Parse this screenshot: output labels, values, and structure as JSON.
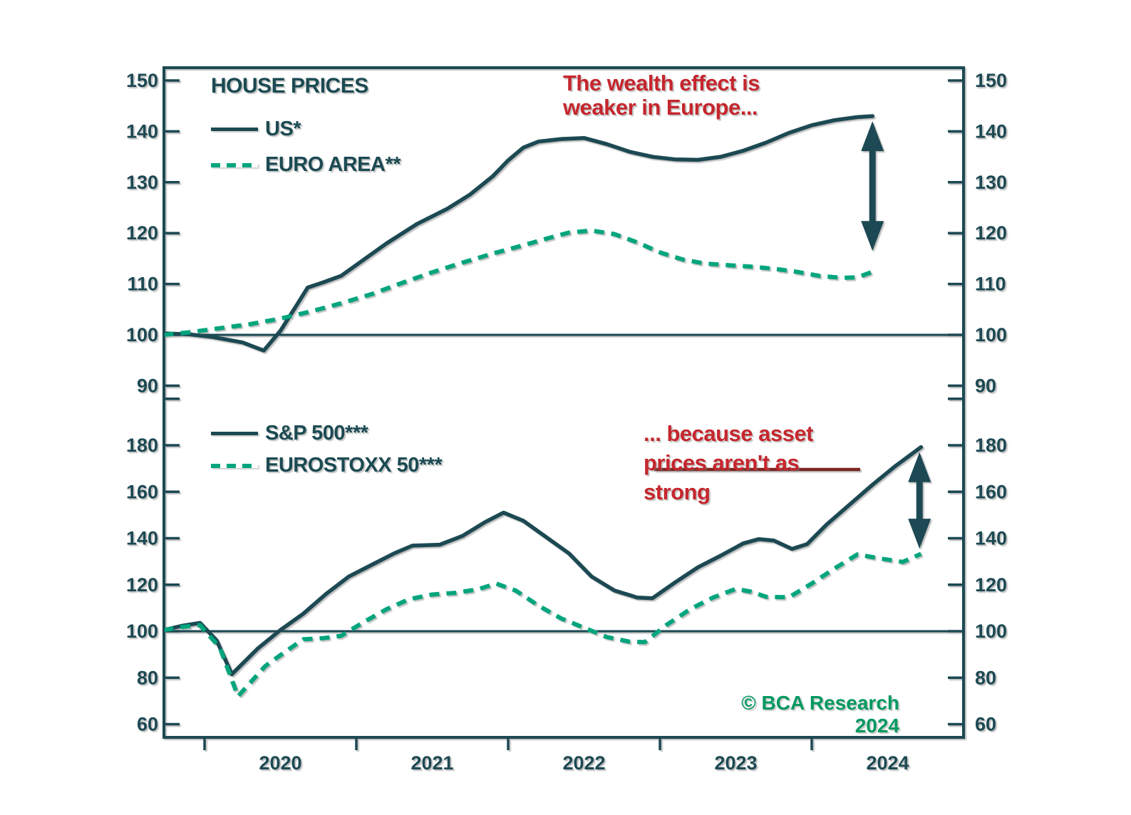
{
  "chart_data": {
    "type": "line",
    "x_axis": {
      "year_labels": [
        "2020",
        "2021",
        "2022",
        "2023",
        "2024"
      ],
      "year_values": [
        2020,
        2021,
        2022,
        2023,
        2024
      ],
      "range": [
        2019.73,
        2025.0
      ]
    },
    "copyright": "© BCA Research 2024",
    "colors": {
      "axis": "#1b4a52",
      "solid_series": "#1b4a52",
      "dashed_series": "#00a57d",
      "annotation_red": "#c5262d",
      "leader_maroon": "#7c2824",
      "copyright_green": "#00995f"
    },
    "panels": [
      {
        "name": "house-prices",
        "legend_title": "HOUSE PRICES",
        "yticks": [
          150,
          140,
          130,
          120,
          110,
          100,
          90
        ],
        "reference_value": 100,
        "annotation": {
          "lines": [
            "The wealth effect is",
            "weaker in Europe..."
          ]
        },
        "arrow": {
          "x": 2024.4,
          "from": 142.0,
          "to": 116.5
        },
        "series": [
          {
            "label": "US*",
            "line": "solid",
            "points": [
              [
                2019.73,
                100.3
              ],
              [
                2019.9,
                100.1
              ],
              [
                2020.05,
                99.6
              ],
              [
                2020.25,
                98.5
              ],
              [
                2020.39,
                96.9
              ],
              [
                2020.5,
                100.8
              ],
              [
                2020.6,
                105.5
              ],
              [
                2020.68,
                109.3
              ],
              [
                2020.78,
                110.3
              ],
              [
                2020.9,
                111.6
              ],
              [
                2021.05,
                114.8
              ],
              [
                2021.2,
                118.0
              ],
              [
                2021.4,
                121.8
              ],
              [
                2021.6,
                124.8
              ],
              [
                2021.75,
                127.6
              ],
              [
                2021.9,
                131.2
              ],
              [
                2022.0,
                134.3
              ],
              [
                2022.1,
                136.8
              ],
              [
                2022.2,
                138.0
              ],
              [
                2022.35,
                138.5
              ],
              [
                2022.5,
                138.7
              ],
              [
                2022.65,
                137.5
              ],
              [
                2022.8,
                136.0
              ],
              [
                2022.95,
                135.0
              ],
              [
                2023.1,
                134.5
              ],
              [
                2023.25,
                134.4
              ],
              [
                2023.4,
                135.0
              ],
              [
                2023.55,
                136.2
              ],
              [
                2023.7,
                137.8
              ],
              [
                2023.85,
                139.7
              ],
              [
                2024.0,
                141.2
              ],
              [
                2024.15,
                142.2
              ],
              [
                2024.3,
                142.8
              ],
              [
                2024.4,
                143.0
              ]
            ]
          },
          {
            "label": "EURO AREA**",
            "line": "dashed",
            "points": [
              [
                2019.73,
                100.0
              ],
              [
                2019.9,
                100.5
              ],
              [
                2020.1,
                101.3
              ],
              [
                2020.3,
                102.1
              ],
              [
                2020.5,
                103.2
              ],
              [
                2020.7,
                104.6
              ],
              [
                2020.9,
                106.2
              ],
              [
                2021.1,
                108.0
              ],
              [
                2021.3,
                110.2
              ],
              [
                2021.5,
                112.3
              ],
              [
                2021.7,
                114.2
              ],
              [
                2021.9,
                116.0
              ],
              [
                2022.1,
                117.6
              ],
              [
                2022.25,
                118.9
              ],
              [
                2022.4,
                120.1
              ],
              [
                2022.55,
                120.5
              ],
              [
                2022.7,
                119.8
              ],
              [
                2022.85,
                118.2
              ],
              [
                2023.0,
                116.2
              ],
              [
                2023.15,
                114.8
              ],
              [
                2023.3,
                114.0
              ],
              [
                2023.45,
                113.7
              ],
              [
                2023.6,
                113.4
              ],
              [
                2023.75,
                113.0
              ],
              [
                2023.9,
                112.4
              ],
              [
                2024.05,
                111.6
              ],
              [
                2024.2,
                111.2
              ],
              [
                2024.3,
                111.3
              ],
              [
                2024.4,
                112.4
              ]
            ]
          }
        ]
      },
      {
        "name": "equity-indexes",
        "legend_title": "",
        "yticks": [
          180,
          160,
          140,
          120,
          100,
          80,
          60
        ],
        "extra_unlabeled_tick": 200,
        "reference_value": 100,
        "annotation": {
          "lines": [
            "... because asset",
            "prices aren't as",
            "strong"
          ]
        },
        "arrow": {
          "x": 2024.71,
          "from": 177.0,
          "to": 135.5
        },
        "series": [
          {
            "label": "S&P 500***",
            "line": "solid",
            "points": [
              [
                2019.73,
                100.5
              ],
              [
                2019.85,
                102.3
              ],
              [
                2019.97,
                103.6
              ],
              [
                2020.08,
                96.0
              ],
              [
                2020.18,
                81.5
              ],
              [
                2020.35,
                92.5
              ],
              [
                2020.5,
                100.5
              ],
              [
                2020.65,
                107.5
              ],
              [
                2020.8,
                116.0
              ],
              [
                2020.95,
                123.5
              ],
              [
                2021.1,
                128.5
              ],
              [
                2021.25,
                133.5
              ],
              [
                2021.37,
                136.8
              ],
              [
                2021.55,
                137.2
              ],
              [
                2021.7,
                141.0
              ],
              [
                2021.85,
                147.0
              ],
              [
                2021.97,
                151.0
              ],
              [
                2022.1,
                147.5
              ],
              [
                2022.25,
                140.5
              ],
              [
                2022.4,
                133.5
              ],
              [
                2022.55,
                123.5
              ],
              [
                2022.7,
                117.5
              ],
              [
                2022.85,
                114.5
              ],
              [
                2022.95,
                114.2
              ],
              [
                2023.1,
                121.0
              ],
              [
                2023.25,
                127.5
              ],
              [
                2023.4,
                132.5
              ],
              [
                2023.55,
                137.8
              ],
              [
                2023.65,
                139.6
              ],
              [
                2023.75,
                139.0
              ],
              [
                2023.87,
                135.4
              ],
              [
                2023.97,
                137.5
              ],
              [
                2024.1,
                146.0
              ],
              [
                2024.25,
                154.5
              ],
              [
                2024.4,
                163.0
              ],
              [
                2024.55,
                171.0
              ],
              [
                2024.72,
                179.2
              ]
            ]
          },
          {
            "label": "EUROSTOXX 50***",
            "line": "dashed",
            "points": [
              [
                2019.73,
                100.5
              ],
              [
                2019.85,
                101.8
              ],
              [
                2019.97,
                102.6
              ],
              [
                2020.1,
                93.0
              ],
              [
                2020.22,
                72.0
              ],
              [
                2020.4,
                85.0
              ],
              [
                2020.55,
                92.0
              ],
              [
                2020.65,
                96.5
              ],
              [
                2020.78,
                97.0
              ],
              [
                2020.9,
                98.0
              ],
              [
                2021.05,
                104.0
              ],
              [
                2021.2,
                109.5
              ],
              [
                2021.35,
                113.8
              ],
              [
                2021.5,
                115.8
              ],
              [
                2021.65,
                116.5
              ],
              [
                2021.8,
                118.0
              ],
              [
                2021.92,
                120.5
              ],
              [
                2022.05,
                117.5
              ],
              [
                2022.2,
                111.0
              ],
              [
                2022.35,
                105.5
              ],
              [
                2022.5,
                101.5
              ],
              [
                2022.65,
                97.5
              ],
              [
                2022.8,
                95.5
              ],
              [
                2022.9,
                95.3
              ],
              [
                2023.05,
                103.0
              ],
              [
                2023.2,
                109.5
              ],
              [
                2023.35,
                114.5
              ],
              [
                2023.5,
                118.2
              ],
              [
                2023.6,
                117.0
              ],
              [
                2023.7,
                114.8
              ],
              [
                2023.85,
                114.6
              ],
              [
                2024.0,
                120.5
              ],
              [
                2024.15,
                127.0
              ],
              [
                2024.3,
                133.0
              ],
              [
                2024.45,
                131.3
              ],
              [
                2024.6,
                129.8
              ],
              [
                2024.72,
                133.3
              ]
            ]
          }
        ]
      }
    ]
  }
}
